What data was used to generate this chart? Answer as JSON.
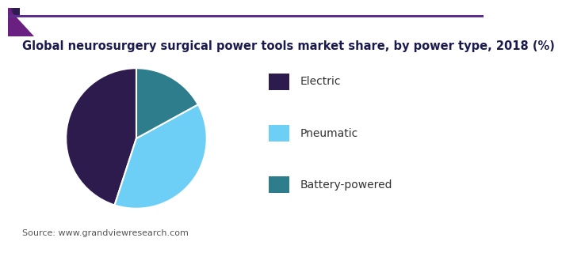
{
  "title": "Global neurosurgery surgical power tools market share, by power type, 2018 (%)",
  "slices": [
    {
      "label": "Electric",
      "value": 45,
      "color": "#2d1b4e"
    },
    {
      "label": "Pneumatic",
      "value": 38,
      "color": "#6ecff6"
    },
    {
      "label": "Battery-powered",
      "value": 17,
      "color": "#2e7d8c"
    }
  ],
  "background_color": "#ffffff",
  "source_text": "Source: www.grandviewresearch.com",
  "title_fontsize": 10.5,
  "legend_fontsize": 10,
  "source_fontsize": 8,
  "startangle": 90,
  "header_gradient_left": "#7b2d8b",
  "header_gradient_right": "#2d1b4e",
  "header_line_color": "#5b2d8e",
  "title_color": "#1a1a4e"
}
